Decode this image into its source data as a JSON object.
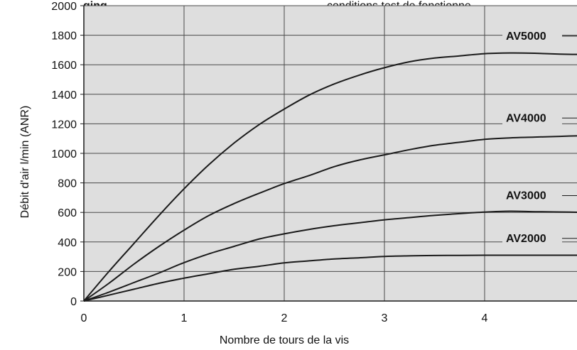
{
  "header_fragments": {
    "left": "ging",
    "right": "conditions test de fonctionne,"
  },
  "colors": {
    "plot_background": "#dedede",
    "grid": "#4a4a4a",
    "line": "#1a1a1a",
    "text": "#111111"
  },
  "chart_data": {
    "type": "line",
    "xlabel": "Nombre de tours de la vis",
    "ylabel": "Débit d'air  l/min (ANR)",
    "xlim": [
      0,
      5
    ],
    "ylim": [
      0,
      2000
    ],
    "x_ticks": [
      "0",
      "1",
      "2",
      "3",
      "4",
      "5"
    ],
    "y_ticks": [
      "0",
      "200",
      "400",
      "600",
      "800",
      "1000",
      "1200",
      "1400",
      "1600",
      "1800",
      "2000"
    ],
    "grid": true,
    "series": [
      {
        "name": "AV5000",
        "points": [
          [
            0,
            0
          ],
          [
            0.25,
            200
          ],
          [
            0.5,
            390
          ],
          [
            0.75,
            580
          ],
          [
            1,
            760
          ],
          [
            1.25,
            925
          ],
          [
            1.5,
            1070
          ],
          [
            1.75,
            1195
          ],
          [
            2,
            1300
          ],
          [
            2.25,
            1395
          ],
          [
            2.5,
            1470
          ],
          [
            2.75,
            1530
          ],
          [
            3,
            1580
          ],
          [
            3.25,
            1620
          ],
          [
            3.5,
            1645
          ],
          [
            3.75,
            1660
          ],
          [
            4,
            1675
          ],
          [
            4.25,
            1680
          ],
          [
            4.5,
            1678
          ],
          [
            4.75,
            1672
          ],
          [
            5,
            1670
          ]
        ]
      },
      {
        "name": "AV4000",
        "points": [
          [
            0,
            0
          ],
          [
            0.25,
            120
          ],
          [
            0.5,
            250
          ],
          [
            0.75,
            370
          ],
          [
            1,
            480
          ],
          [
            1.25,
            580
          ],
          [
            1.5,
            660
          ],
          [
            1.75,
            730
          ],
          [
            2,
            795
          ],
          [
            2.25,
            850
          ],
          [
            2.5,
            910
          ],
          [
            2.75,
            955
          ],
          [
            3,
            990
          ],
          [
            3.25,
            1025
          ],
          [
            3.5,
            1055
          ],
          [
            3.75,
            1075
          ],
          [
            4,
            1095
          ],
          [
            4.25,
            1105
          ],
          [
            4.5,
            1110
          ],
          [
            4.75,
            1115
          ],
          [
            5,
            1120
          ]
        ]
      },
      {
        "name": "AV3000",
        "points": [
          [
            0,
            0
          ],
          [
            0.25,
            60
          ],
          [
            0.5,
            125
          ],
          [
            0.75,
            190
          ],
          [
            1,
            260
          ],
          [
            1.25,
            320
          ],
          [
            1.5,
            370
          ],
          [
            1.75,
            420
          ],
          [
            2,
            455
          ],
          [
            2.25,
            485
          ],
          [
            2.5,
            510
          ],
          [
            2.75,
            530
          ],
          [
            3,
            550
          ],
          [
            3.25,
            565
          ],
          [
            3.5,
            580
          ],
          [
            3.75,
            592
          ],
          [
            4,
            602
          ],
          [
            4.25,
            608
          ],
          [
            4.5,
            605
          ],
          [
            4.75,
            603
          ],
          [
            5,
            600
          ]
        ]
      },
      {
        "name": "AV2000",
        "points": [
          [
            0,
            0
          ],
          [
            0.25,
            40
          ],
          [
            0.5,
            80
          ],
          [
            0.75,
            120
          ],
          [
            1,
            155
          ],
          [
            1.25,
            185
          ],
          [
            1.5,
            215
          ],
          [
            1.75,
            235
          ],
          [
            2,
            258
          ],
          [
            2.25,
            272
          ],
          [
            2.5,
            285
          ],
          [
            2.75,
            293
          ],
          [
            3,
            302
          ],
          [
            3.25,
            306
          ],
          [
            3.5,
            308
          ],
          [
            3.75,
            309
          ],
          [
            4,
            310
          ],
          [
            4.25,
            310
          ],
          [
            4.5,
            310
          ],
          [
            4.75,
            310
          ],
          [
            5,
            310
          ]
        ]
      }
    ]
  }
}
